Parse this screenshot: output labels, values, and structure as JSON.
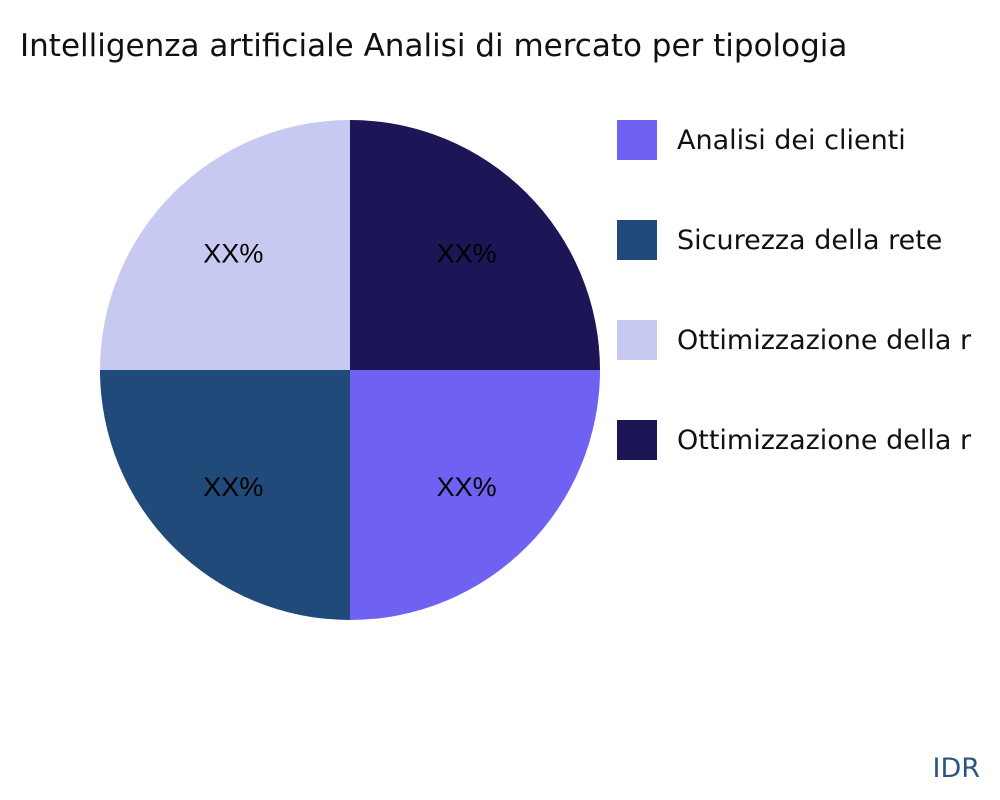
{
  "chart_data": {
    "type": "pie",
    "title": "Intelligenza artificiale Analisi di mercato per tipologia",
    "legend_position": "right",
    "slices": [
      {
        "name": "Analisi dei clienti",
        "value": 25,
        "label": "XX%",
        "color": "#6f61f2"
      },
      {
        "name": "Sicurezza della rete",
        "value": 25,
        "label": "XX%",
        "color": "#1f4a7a"
      },
      {
        "name": "Ottimizzazione della r",
        "value": 25,
        "label": "XX%",
        "color": "#c8c9f0"
      },
      {
        "name": "Ottimizzazione della r",
        "value": 25,
        "label": "XX%",
        "color": "#1c1656"
      }
    ]
  },
  "brand": "IDR"
}
